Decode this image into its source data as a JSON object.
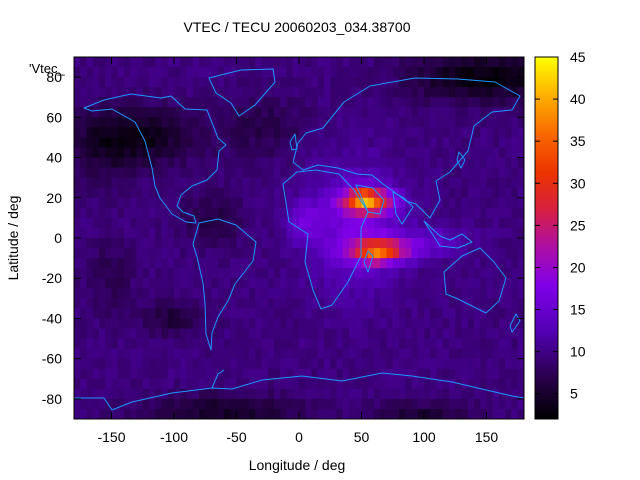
{
  "chart_data": {
    "type": "heatmap",
    "title": "VTEC / TECU 20060203_034.38700",
    "xlabel": "Longitude / deg",
    "ylabel": "Latitude / deg",
    "series_label": "'Vtec_",
    "xlim": [
      -180,
      180
    ],
    "ylim": [
      -90,
      90
    ],
    "x_ticks": [
      -150,
      -100,
      -50,
      0,
      50,
      100,
      150
    ],
    "y_ticks": [
      -80,
      -60,
      -40,
      -20,
      0,
      20,
      40,
      60,
      80
    ],
    "colorbar": {
      "range": [
        2,
        45
      ],
      "ticks": [
        5,
        10,
        15,
        20,
        25,
        30,
        35,
        40,
        45
      ],
      "palette": "black-purple-red-orange-yellow"
    },
    "grid": "5x5 deg",
    "features": [
      {
        "name": "main peak",
        "lon": 50,
        "lat": 19,
        "vtec": 43
      },
      {
        "name": "southern crest",
        "lon": 60,
        "lat": -8,
        "vtec": 40
      },
      {
        "name": "background minimum",
        "lon": -120,
        "lat": 50,
        "vtec": 2
      }
    ]
  },
  "colors": {
    "coastline": "#1e96ff",
    "background": "#ffffff",
    "axis": "#000000"
  }
}
